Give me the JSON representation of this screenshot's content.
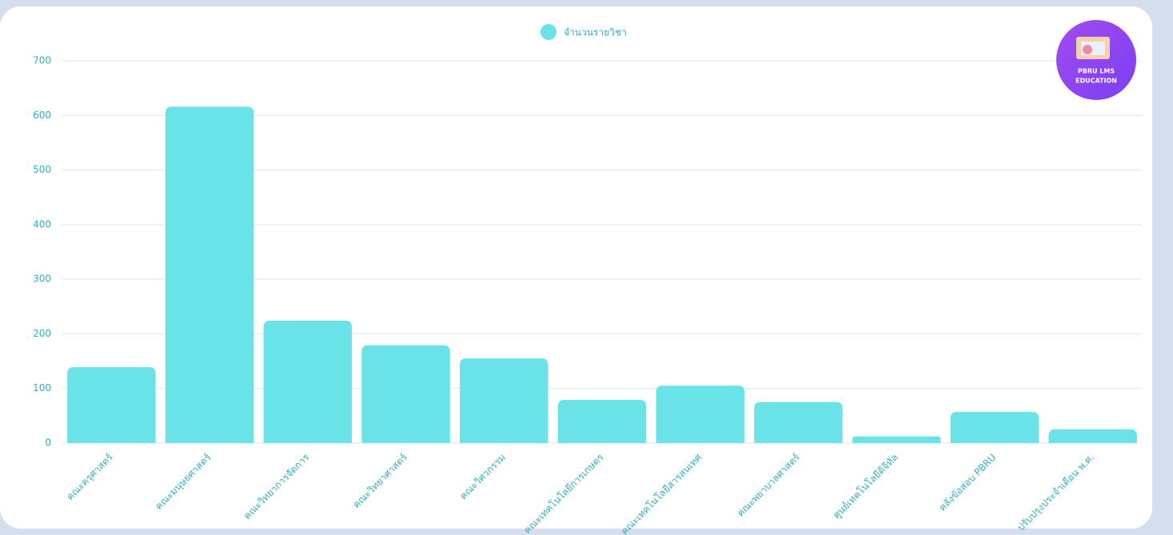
{
  "chart_data": {
    "type": "bar",
    "categories": [
      "คณะครุศาสตร์",
      "คณะมนุษยศาสตร์",
      "คณะวิทยาการจัดการ",
      "คณะวิทยาศาสตร์",
      "คณะวิศวกรรม",
      "คณะเทคโนโลยีการเกษตร",
      "คณะเทคโนโลยีสารสนเทศ",
      "คณะพยาบาลศาสตร์",
      "ศูนย์เทคโนโลยีดิจิทัล",
      "คลังข้อสอบ PBRU",
      "ปรับปรุงประจำเดือน พ.ศ."
    ],
    "series": [
      {
        "name": "จำนวนรายวิชา",
        "color": "#6ae3e8",
        "values": [
          139,
          616,
          224,
          179,
          155,
          79,
          105,
          75,
          12,
          57,
          25
        ]
      }
    ],
    "ylim": [
      0,
      700
    ],
    "yticks": [
      0,
      100,
      200,
      300,
      400,
      500,
      600,
      700
    ],
    "grid": true,
    "legend": "top"
  },
  "logo": {
    "lines": [
      "PBRU LMS",
      "EDUCATION"
    ]
  }
}
